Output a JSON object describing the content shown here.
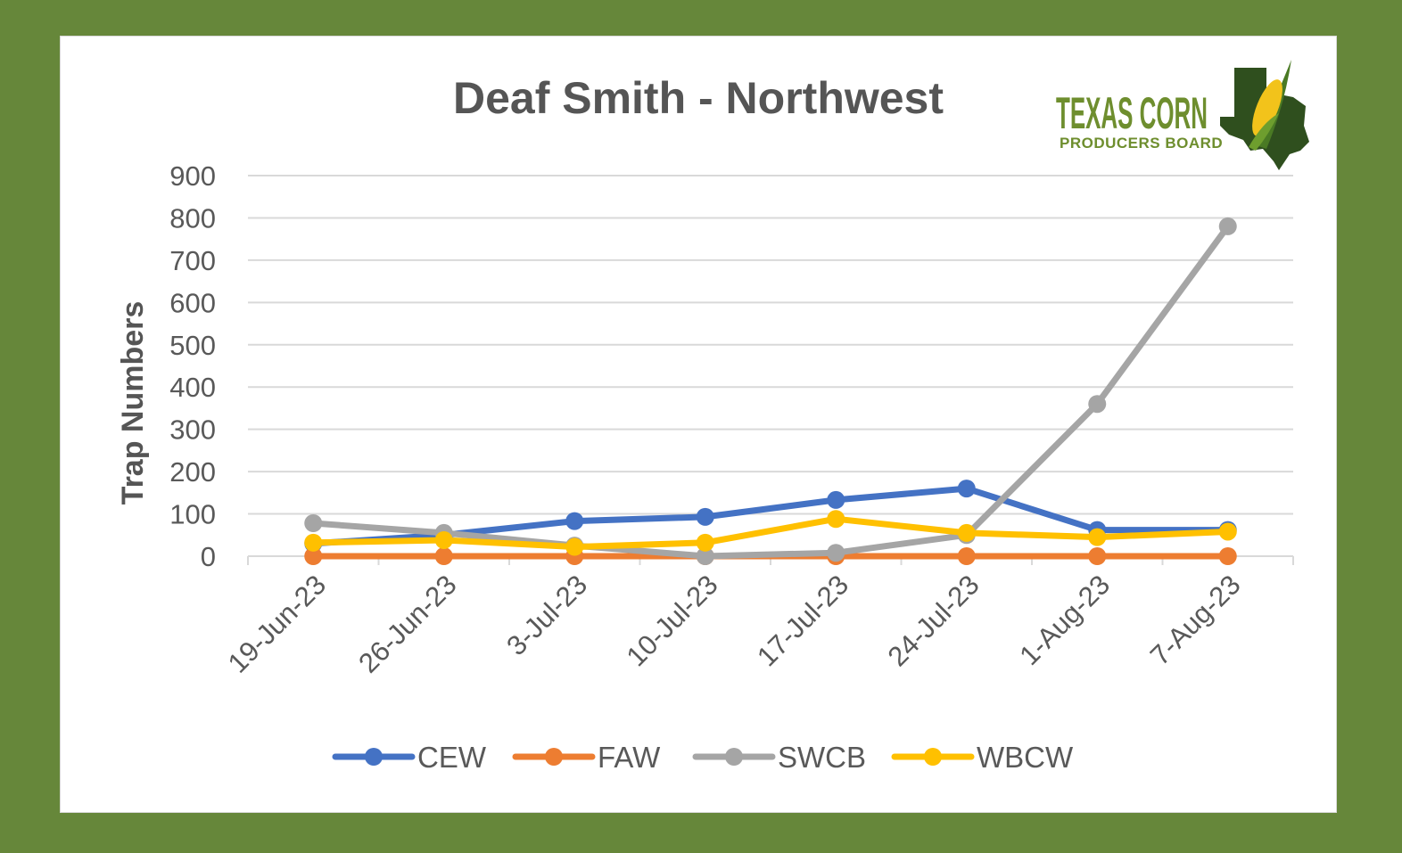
{
  "logo": {
    "line1": "TEXAS CORN",
    "line2": "PRODUCERS BOARD"
  },
  "chart_data": {
    "type": "line",
    "title": "Deaf Smith - Northwest",
    "xlabel": "",
    "ylabel": "Trap Numbers",
    "ylim": [
      0,
      900
    ],
    "yticks": [
      0,
      100,
      200,
      300,
      400,
      500,
      600,
      700,
      800,
      900
    ],
    "grid": true,
    "legend_position": "bottom",
    "x": [
      "19-Jun-23",
      "26-Jun-23",
      "3-Jul-23",
      "10-Jul-23",
      "17-Jul-23",
      "24-Jul-23",
      "1-Aug-23",
      "7-Aug-23"
    ],
    "series": [
      {
        "name": "CEW",
        "color": "#4472C4",
        "values": [
          30,
          50,
          83,
          93,
          133,
          160,
          62,
          62
        ]
      },
      {
        "name": "FAW",
        "color": "#ED7D31",
        "values": [
          0,
          0,
          0,
          0,
          0,
          0,
          0,
          0
        ]
      },
      {
        "name": "SWCB",
        "color": "#A5A5A5",
        "values": [
          78,
          55,
          25,
          0,
          8,
          50,
          360,
          780
        ]
      },
      {
        "name": "WBCW",
        "color": "#FFC000",
        "values": [
          32,
          38,
          22,
          32,
          88,
          55,
          45,
          58
        ]
      }
    ]
  }
}
